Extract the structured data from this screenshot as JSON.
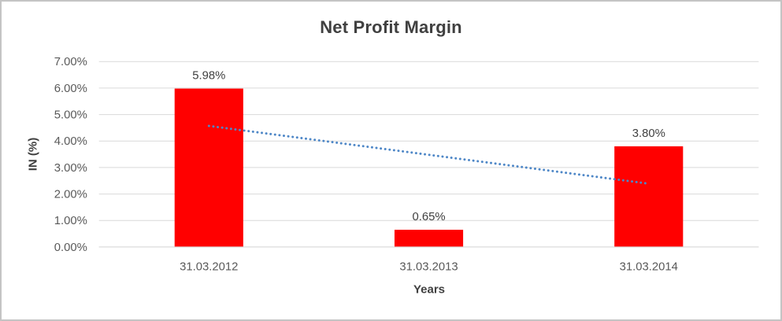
{
  "chart_data": {
    "type": "bar",
    "title": "Net Profit Margin",
    "xlabel": "Years",
    "ylabel": "IN (%)",
    "categories": [
      "31.03.2012",
      "31.03.2013",
      "31.03.2014"
    ],
    "values": [
      5.98,
      0.65,
      3.8
    ],
    "data_labels": [
      "5.98%",
      "0.65%",
      "3.80%"
    ],
    "ylim": [
      0,
      7
    ],
    "y_tick_labels": [
      "0.00%",
      "1.00%",
      "2.00%",
      "3.00%",
      "4.00%",
      "5.00%",
      "6.00%",
      "7.00%"
    ],
    "grid": "horizontal",
    "legend": "none",
    "bar_color": "#FF0000",
    "gridline_color": "#D9D9D9",
    "axis_line_color": "#D9D9D9",
    "title_color": "#404040",
    "axis_title_color": "#404040",
    "tick_label_color": "#595959",
    "data_label_color": "#404040",
    "chart_border_color": "#C4C4C4",
    "trendline": {
      "type": "linear",
      "style": "dotted",
      "color": "#4E87C7",
      "start_value": 4.57,
      "end_value": 2.39
    }
  }
}
